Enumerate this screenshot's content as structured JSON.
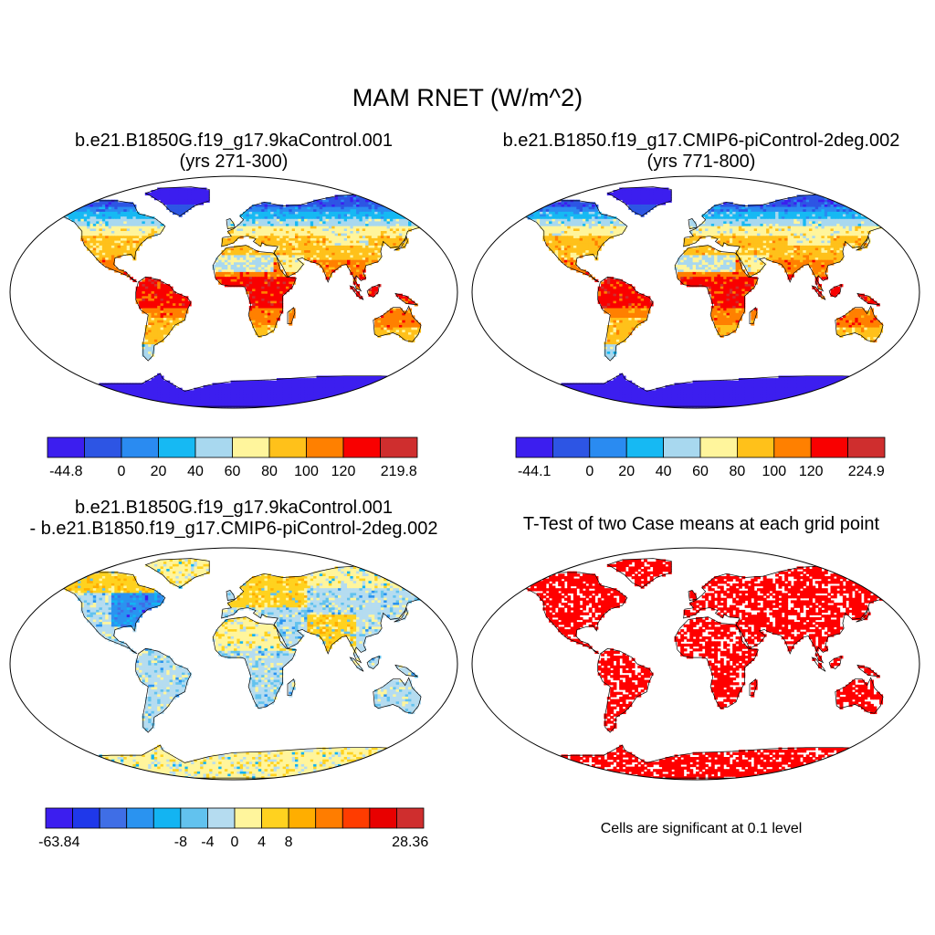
{
  "title": "MAM RNET (W/m^2)",
  "panels": [
    {
      "id": "case1",
      "title_line1": "b.e21.B1850G.f19_g17.9kaControl.001",
      "title_line2": "(yrs 271-300)",
      "colorbar": {
        "min_label": "-44.8",
        "max_label": "219.8",
        "tick_labels": [
          "0",
          "20",
          "40",
          "60",
          "80",
          "100",
          "120"
        ],
        "colors": [
          "#3c1eef",
          "#2d55e4",
          "#2a8bf1",
          "#16b9f3",
          "#a8d8ef",
          "#fff59c",
          "#ffc11a",
          "#ff8000",
          "#f90000",
          "#cf2e2e"
        ]
      }
    },
    {
      "id": "case2",
      "title_line1": "b.e21.B1850.f19_g17.CMIP6-piControl-2deg.002",
      "title_line2": "(yrs 771-800)",
      "colorbar": {
        "min_label": "-44.1",
        "max_label": "224.9",
        "tick_labels": [
          "0",
          "20",
          "40",
          "60",
          "80",
          "100",
          "120"
        ],
        "colors": [
          "#3c1eef",
          "#2d55e4",
          "#2a8bf1",
          "#16b9f3",
          "#a8d8ef",
          "#fff59c",
          "#ffc11a",
          "#ff8000",
          "#f90000",
          "#cf2e2e"
        ]
      }
    },
    {
      "id": "difference",
      "title_line1": "b.e21.B1850G.f19_g17.9kaControl.001",
      "title_line2": "- b.e21.B1850.f19_g17.CMIP6-piControl-2deg.002",
      "colorbar": {
        "min_label": "-63.84",
        "max_label": "28.36",
        "tick_labels": [
          "-8",
          "-4",
          "0",
          "4",
          "8"
        ],
        "colors": [
          "#3c1eef",
          "#1f38ea",
          "#3f6ee6",
          "#2a93f0",
          "#13b4f2",
          "#62c2ee",
          "#b5dcf0",
          "#fff59c",
          "#ffd21f",
          "#ffae00",
          "#ff7d00",
          "#ff3c00",
          "#e80000",
          "#cf2e2e"
        ]
      }
    },
    {
      "id": "ttest",
      "title_line1": "T-Test of two Case means at each grid point",
      "note": "Cells are significant at 0.1 level",
      "fill_color": "#ff0000"
    }
  ]
}
